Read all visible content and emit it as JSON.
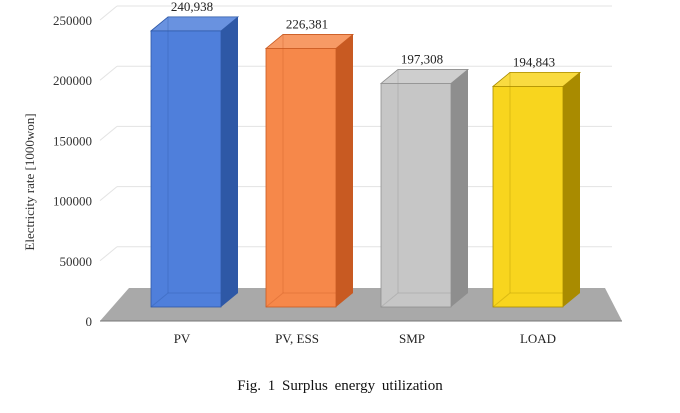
{
  "caption": "Fig. 1 Surplus energy utilization",
  "chart_data": {
    "type": "bar",
    "style": "3d",
    "title": "",
    "xlabel": "",
    "ylabel": "Electricity rate [1000won]",
    "ylim": [
      0,
      250000
    ],
    "yticks": [
      0,
      50000,
      100000,
      150000,
      200000,
      250000
    ],
    "grid": true,
    "legend": "none",
    "categories": [
      "PV",
      "PV, ESS",
      "SMP",
      "LOAD"
    ],
    "values": [
      240938,
      226381,
      197308,
      194843
    ],
    "data_labels": [
      "240,938",
      "226,381",
      "197,308",
      "194,843"
    ],
    "colors": [
      "#4f7fdb",
      "#f6884a",
      "#c6c6c6",
      "#f8d51e"
    ],
    "dark_colors": [
      "#2e58a6",
      "#c85a22",
      "#8e8e8e",
      "#a98b00"
    ],
    "floor_color": "#a9a9a9"
  }
}
